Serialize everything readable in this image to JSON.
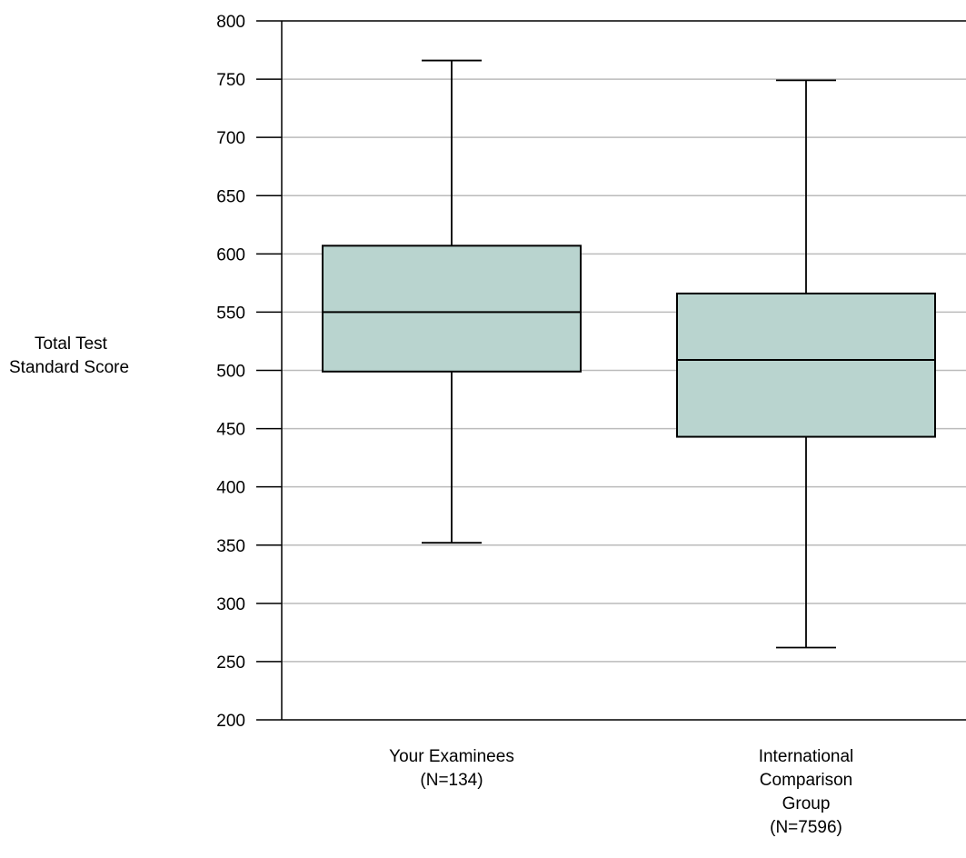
{
  "chart_data": {
    "type": "box",
    "ylabel_lines": [
      "Total Test",
      "Standard Score"
    ],
    "ylim": [
      200,
      800
    ],
    "yticks": [
      200,
      250,
      300,
      350,
      400,
      450,
      500,
      550,
      600,
      650,
      700,
      750,
      800
    ],
    "grid": true,
    "categories": [
      {
        "label_lines": [
          "Your Examinees",
          "(N=134)"
        ],
        "min": 352,
        "q1": 499,
        "median": 550,
        "q3": 607,
        "max": 766
      },
      {
        "label_lines": [
          "International",
          "Comparison",
          "Group",
          "(N=7596)"
        ],
        "min": 262,
        "q1": 443,
        "median": 509,
        "q3": 566,
        "max": 749
      }
    ],
    "colors": {
      "box_fill": "#B9D4CF",
      "line": "#000000",
      "grid": "#BBBBBB"
    }
  }
}
